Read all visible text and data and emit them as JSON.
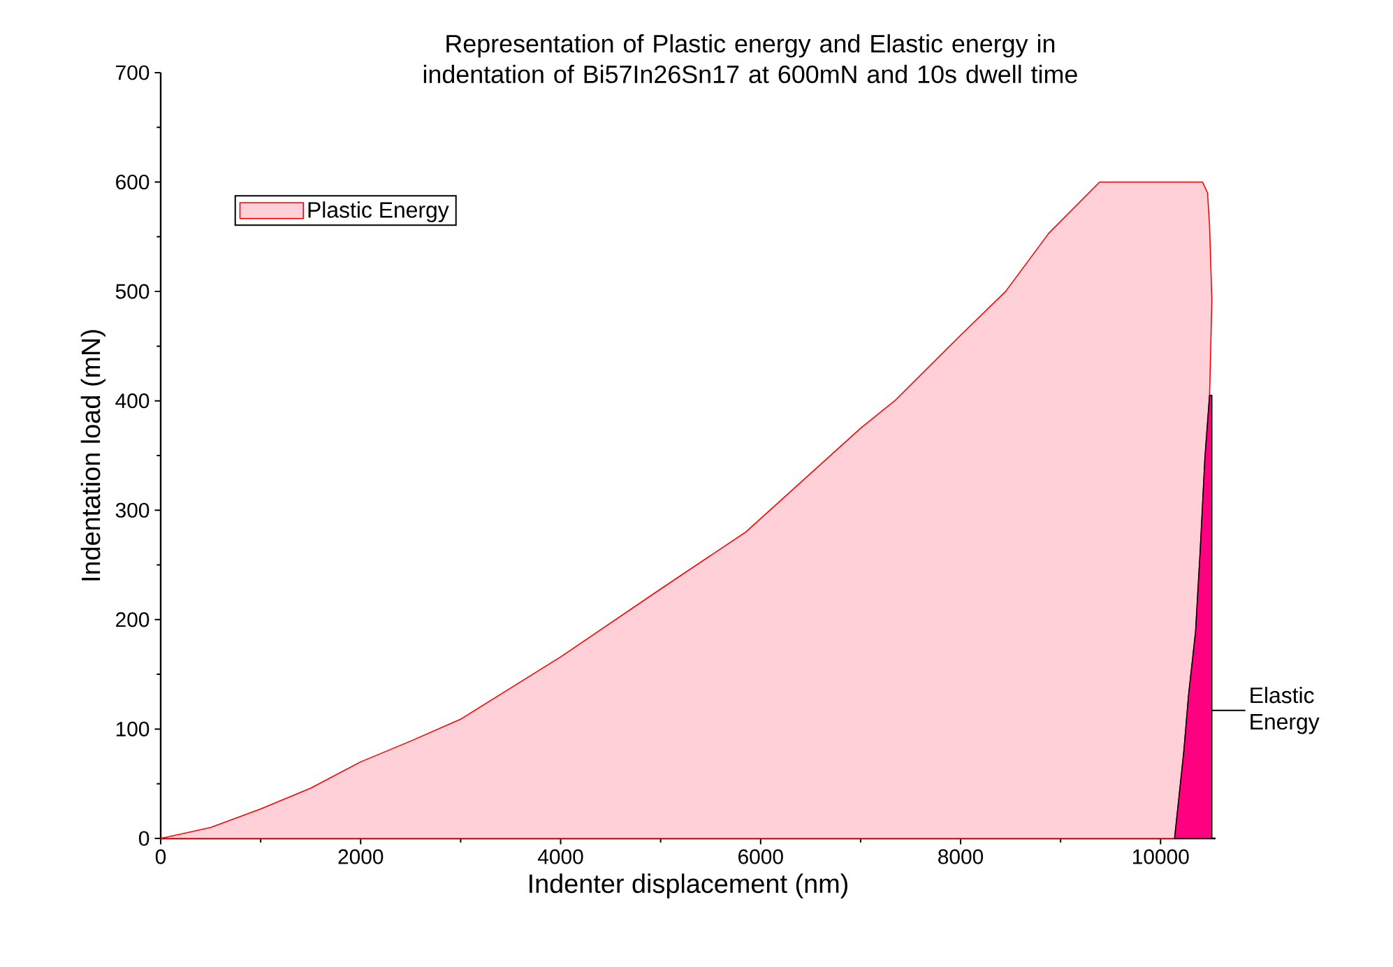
{
  "chart_data": {
    "type": "area",
    "title": "Representation of Plastic energy and Elastic energy in indentation of Bi57In26Sn17 at 600mN and 10s dwell time",
    "xlabel": "Indenter displacement (nm)",
    "ylabel": "Indentation load (mN)",
    "series": [
      {
        "name": "Plastic Energy",
        "color": "#ffd0d8",
        "x": [
          0,
          500,
          1000,
          1500,
          2000,
          2500,
          3000,
          4000,
          5000,
          5850,
          7000,
          7340,
          8000,
          8450,
          8880,
          9390,
          10420,
          10470,
          10490,
          10513,
          10490,
          10443,
          10397,
          10350,
          10280,
          10233,
          10140
        ],
        "values": [
          0,
          10,
          27,
          46,
          70,
          89,
          109,
          166,
          228,
          280,
          375,
          400,
          460,
          500,
          553,
          600,
          600,
          590,
          560,
          492,
          405,
          347,
          264,
          189,
          131,
          80,
          0
        ]
      },
      {
        "color": "#ff0080",
        "x": [
          10140,
          10233,
          10280,
          10350,
          10397,
          10443,
          10490,
          10513,
          10513
        ],
        "values": [
          0,
          80,
          131,
          189,
          264,
          347,
          405,
          405,
          0
        ]
      }
    ],
    "annotations": [
      {
        "text": "Elastic Energy",
        "x": 10513,
        "y": 117
      }
    ],
    "xlim": [
      0,
      10550
    ],
    "ylim": [
      0,
      700
    ],
    "xticks": [
      0,
      2000,
      4000,
      6000,
      8000,
      10000
    ],
    "yticks": [
      0,
      100,
      200,
      300,
      400,
      500,
      600,
      700
    ],
    "legend": "top left",
    "grid": false
  }
}
